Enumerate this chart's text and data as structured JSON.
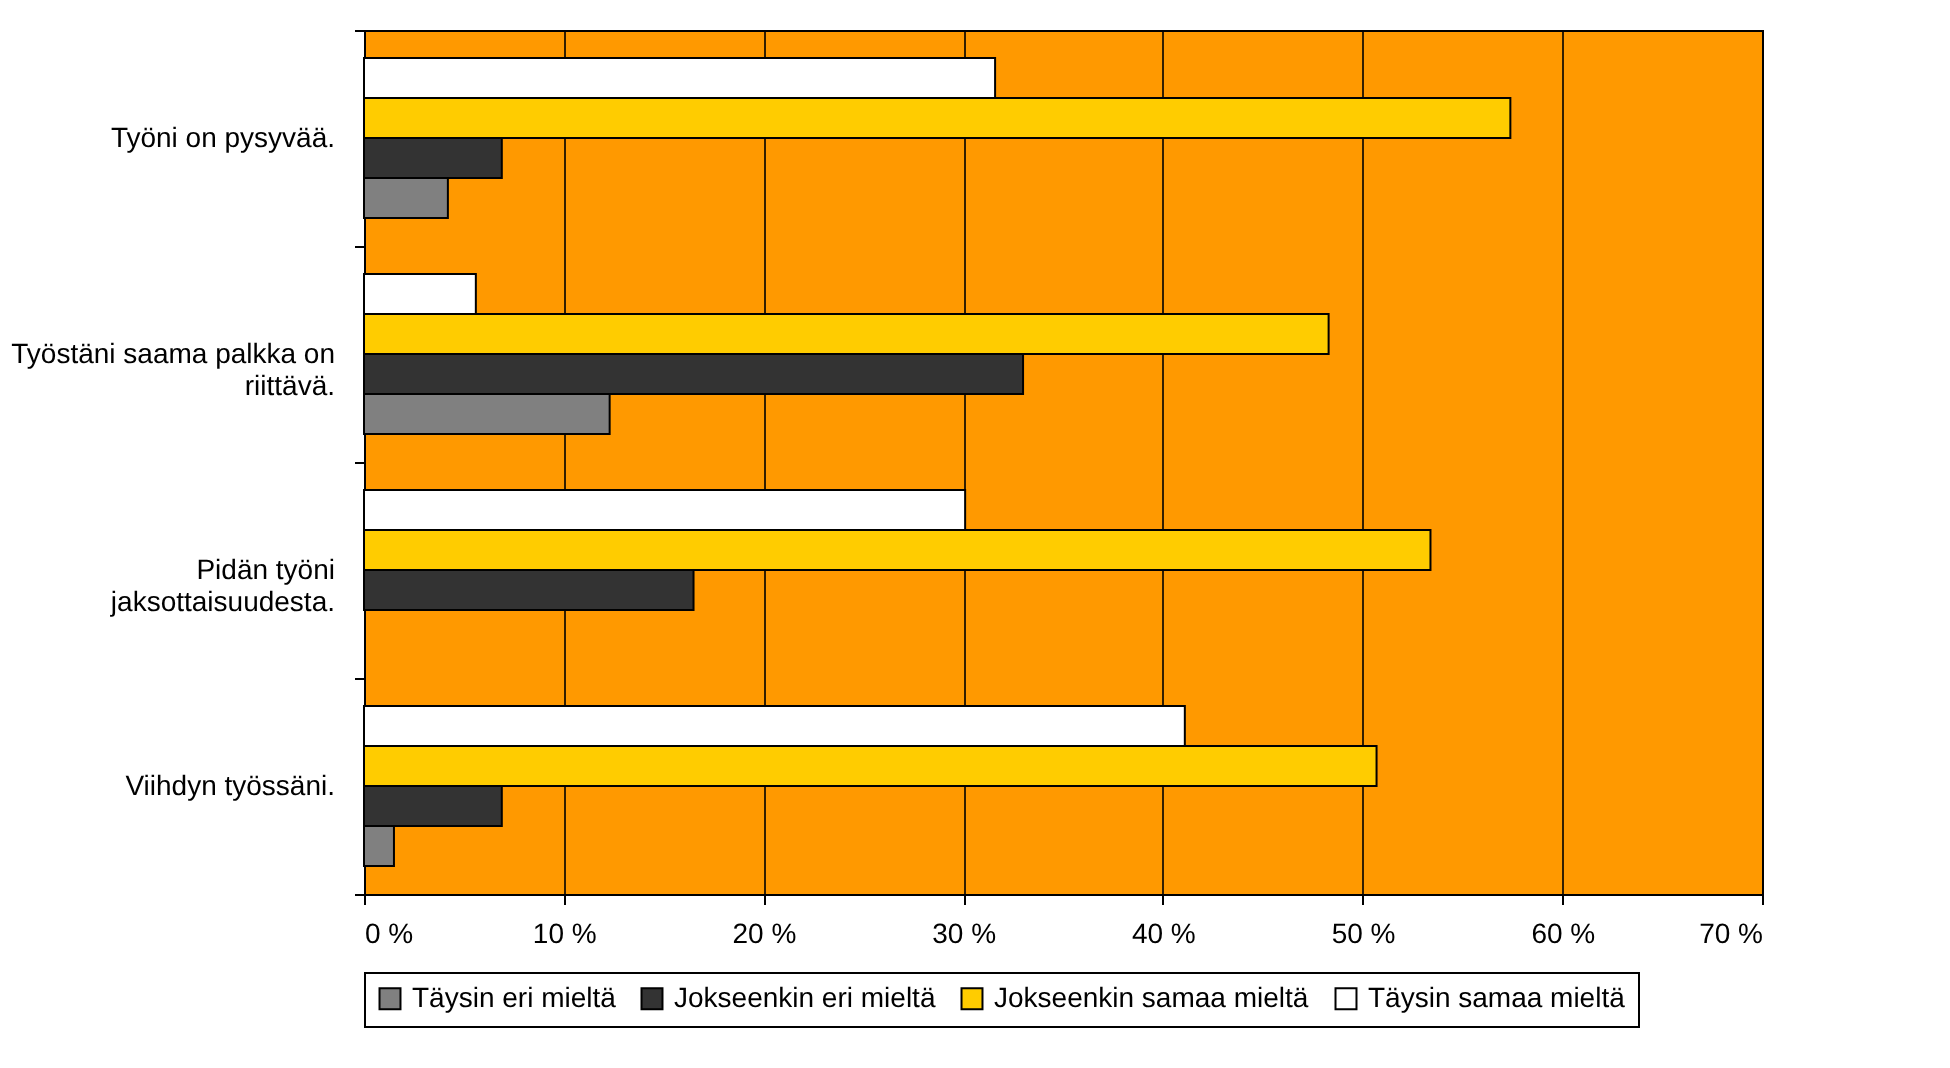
{
  "chart_data": {
    "type": "bar",
    "orientation": "horizontal",
    "categories": [
      "Työni on pysyvää.",
      "Työstäni saama palkka on riittävä.",
      "Pidän työni jaksottaisuudesta.",
      "Viihdyn työssäni."
    ],
    "series": [
      {
        "name": "Täysin eri mieltä",
        "color": "#808080",
        "values": [
          4.2,
          12.3,
          null,
          1.5
        ]
      },
      {
        "name": "Jokseenkin eri mieltä",
        "color": "#333333",
        "values": [
          6.9,
          33.0,
          16.5,
          6.9
        ]
      },
      {
        "name": "Jokseenkin samaa mieltä",
        "color": "#ffcc00",
        "values": [
          57.4,
          48.3,
          53.4,
          50.7
        ]
      },
      {
        "name": "Täysin samaa mieltä",
        "color": "#ffffff",
        "values": [
          31.6,
          5.6,
          30.1,
          41.1
        ]
      }
    ],
    "xlim": [
      0,
      70
    ],
    "xticks": [
      {
        "value": 0,
        "label": "0 %"
      },
      {
        "value": 10,
        "label": "10 %"
      },
      {
        "value": 20,
        "label": "20 %"
      },
      {
        "value": 30,
        "label": "30 %"
      },
      {
        "value": 40,
        "label": "40 %"
      },
      {
        "value": 50,
        "label": "50 %"
      },
      {
        "value": 60,
        "label": "60 %"
      },
      {
        "value": 70,
        "label": "70 %"
      }
    ],
    "grid": "x",
    "legend": "bottom"
  }
}
